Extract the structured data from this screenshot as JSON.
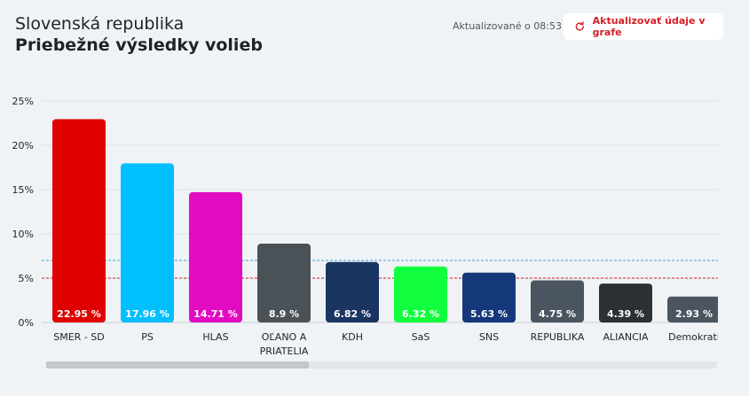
{
  "header": {
    "title": "Slovenská republika",
    "subtitle": "Priebežné výsledky volieb",
    "updated": "Aktualizované o 08:53",
    "refresh_label": "Aktualizovať údaje v grafe"
  },
  "colors": {
    "background": "#eff3f5",
    "accent": "#d51f27",
    "threshold_blue": "#4a9fd8",
    "threshold_red": "#d51f27"
  },
  "icons": {
    "refresh": "refresh-icon"
  },
  "chart_data": {
    "type": "bar",
    "categories": [
      "SMER - SD",
      "PS",
      "HLAS",
      "OĽANO A PRIATELIA",
      "KDH",
      "SaS",
      "SNS",
      "REPUBLIKA",
      "ALIANCIA",
      "Demokrati"
    ],
    "values": [
      22.95,
      17.96,
      14.71,
      8.9,
      6.82,
      6.32,
      5.63,
      4.75,
      4.39,
      2.93
    ],
    "value_labels": [
      "22.95 %",
      "17.96 %",
      "14.71 %",
      "8.9 %",
      "6.82 %",
      "6.32 %",
      "5.63 %",
      "4.75 %",
      "4.39 %",
      "2.93 %"
    ],
    "bar_colors": [
      "#e00000",
      "#00bfff",
      "#e20bc2",
      "#4a5258",
      "#1b3563",
      "#11ff3e",
      "#14387a",
      "#4a5560",
      "#2b3035",
      "#4a5560"
    ],
    "ylim": [
      0,
      25
    ],
    "y_ticks": [
      0,
      5,
      10,
      15,
      20,
      25
    ],
    "y_tick_labels": [
      "0%",
      "5%",
      "10%",
      "15%",
      "20%",
      "25%"
    ],
    "thresholds": [
      {
        "value": 7,
        "color": "#4a9fd8"
      },
      {
        "value": 5,
        "color": "#d51f27"
      }
    ],
    "grid": true,
    "xlabel": "",
    "ylabel": "",
    "title": ""
  }
}
